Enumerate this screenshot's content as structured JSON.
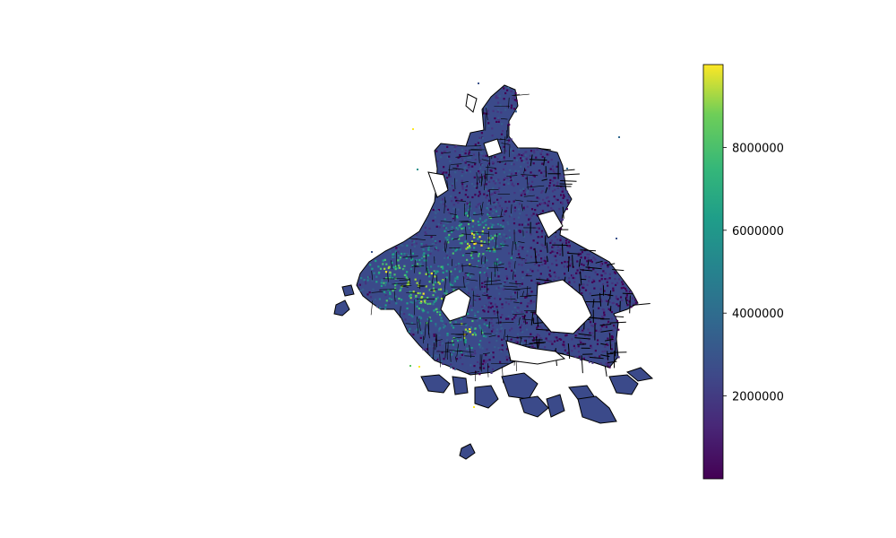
{
  "map": {
    "type": "choropleth-scatter",
    "colormap": "viridis",
    "boundary_color": "#000000",
    "point_color_scale": {
      "min": 0,
      "max": 10000000
    },
    "colors": {
      "viridis_low": "#440154",
      "viridis_mid_low": "#3b528b",
      "viridis_mid": "#21918c",
      "viridis_mid_high": "#5ec962",
      "viridis_high": "#fde725"
    }
  },
  "colorbar": {
    "orientation": "vertical",
    "range": [
      0,
      10000000
    ],
    "ticks": [
      {
        "value": 2000000,
        "label": "2000000"
      },
      {
        "value": 4000000,
        "label": "4000000"
      },
      {
        "value": 6000000,
        "label": "6000000"
      },
      {
        "value": 8000000,
        "label": "8000000"
      }
    ]
  }
}
